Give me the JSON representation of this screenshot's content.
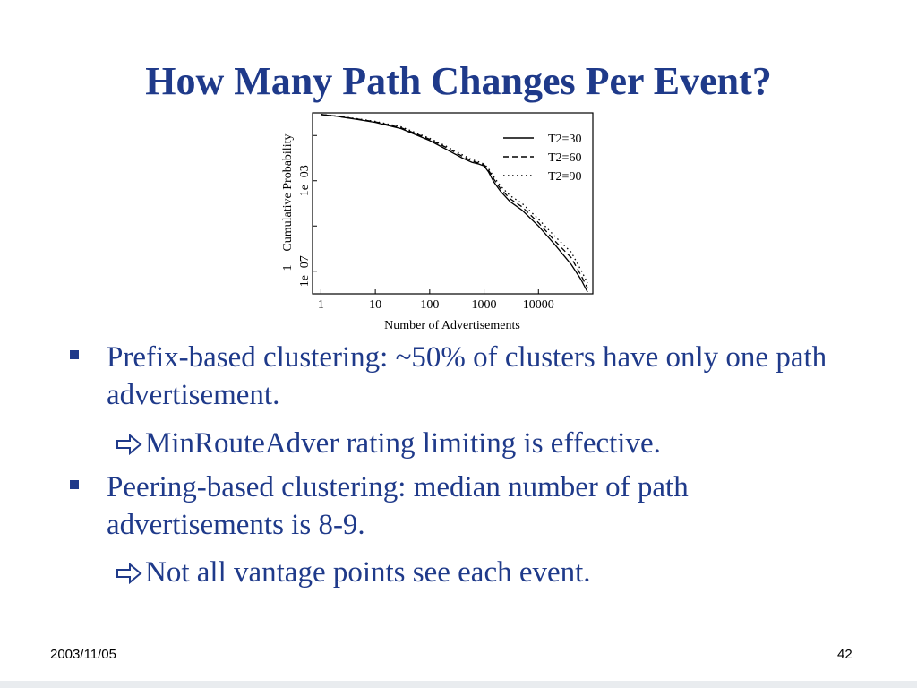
{
  "slide": {
    "title": "How Many Path Changes Per Event?",
    "bullets": [
      {
        "text": "Prefix-based clustering: ~50% of clusters have only one path advertisement.",
        "sub": "MinRouteAdver rating limiting is effective."
      },
      {
        "text": "Peering-based clustering: median number of path advertisements is 8-9.",
        "sub": "Not all vantage points see each event."
      }
    ],
    "footer_date": "2003/11/05",
    "page_number": "42"
  },
  "colors": {
    "text": "#1f3a8a",
    "chart_ink": "#000000"
  },
  "icons": {
    "bullet": "square-bullet-icon",
    "sub_bullet": "hollow-arrow-icon"
  },
  "chart_data": {
    "type": "line",
    "title": "",
    "xlabel": "Number of Advertisements",
    "ylabel": "1 − Cumulative Probability",
    "x_scale": "log",
    "y_scale": "log",
    "xlim": [
      0.7,
      100000
    ],
    "ylim": [
      1e-08,
      1
    ],
    "x_ticks": [
      1,
      10,
      100,
      1000,
      10000
    ],
    "x_tick_labels": [
      "1",
      "10",
      "100",
      "1000",
      "10000"
    ],
    "y_tick_labels": [
      {
        "value": 0.001,
        "label": "1e−03"
      },
      {
        "value": 1e-07,
        "label": "1e−07"
      }
    ],
    "legend_position": "top-right",
    "grid": false,
    "series": [
      {
        "name": "T2=30",
        "style": "solid",
        "x": [
          1,
          2,
          5,
          10,
          30,
          100,
          200,
          400,
          600,
          800,
          1000,
          1200,
          1500,
          2000,
          3000,
          5000,
          10000,
          20000,
          40000,
          60000,
          80000
        ],
        "y": [
          0.85,
          0.7,
          0.5,
          0.38,
          0.2,
          0.06,
          0.025,
          0.01,
          0.0065,
          0.0055,
          0.0045,
          0.0025,
          0.0009,
          0.00035,
          0.00012,
          5e-05,
          1e-05,
          1.5e-06,
          2e-07,
          4.5e-08,
          1.2e-08
        ]
      },
      {
        "name": "T2=60",
        "style": "dashed",
        "x": [
          1,
          2,
          5,
          10,
          30,
          100,
          200,
          400,
          600,
          800,
          1000,
          1200,
          1500,
          2000,
          3000,
          5000,
          10000,
          20000,
          40000,
          60000,
          80000
        ],
        "y": [
          0.85,
          0.71,
          0.52,
          0.4,
          0.22,
          0.068,
          0.03,
          0.012,
          0.0075,
          0.006,
          0.005,
          0.003,
          0.0012,
          0.00045,
          0.00016,
          7e-05,
          1.4e-05,
          2.2e-06,
          4e-07,
          7e-08,
          1.8e-08
        ]
      },
      {
        "name": "T2=90",
        "style": "dotted",
        "x": [
          1,
          2,
          5,
          10,
          30,
          100,
          200,
          400,
          600,
          800,
          1000,
          1200,
          1500,
          2000,
          3000,
          5000,
          10000,
          20000,
          40000,
          60000,
          80000
        ],
        "y": [
          0.85,
          0.72,
          0.54,
          0.42,
          0.24,
          0.075,
          0.034,
          0.014,
          0.0085,
          0.0068,
          0.0055,
          0.0035,
          0.0015,
          0.0006,
          0.00022,
          0.0001,
          2e-05,
          3.5e-06,
          7e-07,
          1.2e-07,
          3e-08
        ]
      }
    ]
  }
}
